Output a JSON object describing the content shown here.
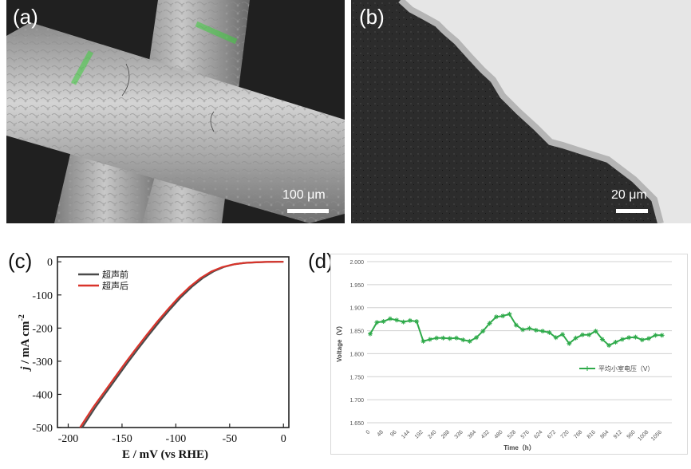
{
  "panels": {
    "a": {
      "letter": "(a)",
      "scale_label": "100 μm"
    },
    "b": {
      "letter": "(b)",
      "scale_label": "20 μm"
    },
    "c": {
      "letter": "(c)"
    },
    "d": {
      "letter": "(d)"
    }
  },
  "chart_data": [
    {
      "type": "line",
      "panel": "c",
      "xlabel": "E / mV (vs RHE)",
      "ylabel_italic": "j",
      "ylabel_rest": " / mA cm",
      "ylabel_sup": "-2",
      "xlim": [
        -210,
        5
      ],
      "ylim": [
        -500,
        15
      ],
      "x_ticks": [
        -200,
        -150,
        -100,
        -50,
        0
      ],
      "x_tick_labels": [
        "-200",
        "-150",
        "-100",
        "-50",
        "0"
      ],
      "y_ticks": [
        0,
        -100,
        -200,
        -300,
        -400,
        -500
      ],
      "y_tick_labels": [
        "0",
        "-100",
        "-200",
        "-300",
        "-400",
        "-500"
      ],
      "legend_position": "top-left",
      "series": [
        {
          "name": "超声前",
          "color": "#4a4a4a",
          "x": [
            -187,
            -175,
            -165,
            -155,
            -145,
            -135,
            -125,
            -115,
            -105,
            -95,
            -85,
            -75,
            -65,
            -55,
            -45,
            -35,
            -25,
            -15,
            -5,
            0
          ],
          "y": [
            -500,
            -440,
            -395,
            -350,
            -305,
            -262,
            -220,
            -180,
            -142,
            -106,
            -75,
            -49,
            -29,
            -15,
            -7,
            -3,
            -1.5,
            -0.5,
            0,
            0
          ]
        },
        {
          "name": "超声后",
          "color": "#d9342b",
          "x": [
            -189,
            -177,
            -167,
            -157,
            -147,
            -137,
            -127,
            -117,
            -107,
            -97,
            -87,
            -77,
            -67,
            -57,
            -47,
            -37,
            -27,
            -17,
            -5,
            0
          ],
          "y": [
            -500,
            -440,
            -395,
            -350,
            -305,
            -262,
            -220,
            -180,
            -142,
            -106,
            -75,
            -49,
            -29,
            -16,
            -8,
            -3.5,
            -1.5,
            -0.5,
            0,
            0
          ]
        }
      ]
    },
    {
      "type": "line",
      "panel": "d",
      "xlabel": "Time（h）",
      "ylabel": "Voltage（V）",
      "ylim": [
        1.65,
        2.0
      ],
      "xlim": [
        0,
        1080
      ],
      "y_ticks": [
        1.65,
        1.7,
        1.75,
        1.8,
        1.85,
        1.9,
        1.95,
        2.0
      ],
      "y_tick_labels": [
        "1.650",
        "1.700",
        "1.750",
        "1.800",
        "1.850",
        "1.900",
        "1.950",
        "2.000"
      ],
      "x_tick_labels": [
        "0",
        "48",
        "96",
        "144",
        "192",
        "240",
        "288",
        "336",
        "384",
        "432",
        "480",
        "528",
        "576",
        "624",
        "672",
        "720",
        "768",
        "816",
        "864",
        "912",
        "960",
        "1008",
        "1056"
      ],
      "grid": true,
      "legend_position": "right",
      "series": [
        {
          "name": "平均小室电压（V）",
          "color": "#2eaa4a",
          "x": [
            0,
            24,
            48,
            72,
            96,
            120,
            144,
            168,
            192,
            216,
            240,
            264,
            288,
            312,
            336,
            360,
            384,
            408,
            432,
            456,
            480,
            504,
            528,
            552,
            576,
            600,
            624,
            648,
            672,
            696,
            720,
            744,
            768,
            792,
            816,
            840,
            864,
            888,
            912,
            936,
            960,
            984,
            1008,
            1032,
            1056
          ],
          "y": [
            1.843,
            1.868,
            1.87,
            1.876,
            1.873,
            1.869,
            1.872,
            1.87,
            1.827,
            1.831,
            1.834,
            1.834,
            1.833,
            1.834,
            1.83,
            1.827,
            1.835,
            1.849,
            1.866,
            1.88,
            1.882,
            1.886,
            1.862,
            1.852,
            1.855,
            1.851,
            1.849,
            1.846,
            1.835,
            1.842,
            1.822,
            1.834,
            1.841,
            1.841,
            1.849,
            1.831,
            1.818,
            1.825,
            1.831,
            1.835,
            1.836,
            1.83,
            1.833,
            1.84,
            1.84
          ]
        }
      ]
    }
  ]
}
